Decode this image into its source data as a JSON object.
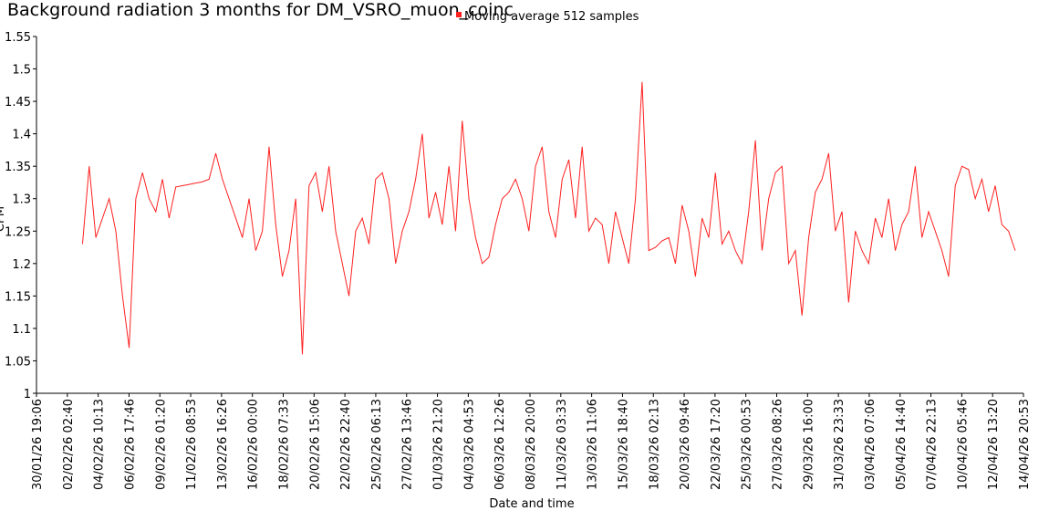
{
  "chart_data": {
    "type": "line",
    "title": "Background radiation 3 months for DM_VSRO_muon_coinc",
    "x_label": "Date and time",
    "y_label": "CPM",
    "x": [
      "03/02/26 06:00",
      "03/02/26 18:00",
      "04/02/26 06:00",
      "04/02/26 18:00",
      "05/02/26 06:00",
      "05/02/26 18:00",
      "06/02/26 06:00",
      "06/02/26 18:00",
      "07/02/26 06:00",
      "07/02/26 18:00",
      "08/02/26 06:00",
      "08/02/26 18:00",
      "09/02/26 06:00",
      "09/02/26 18:00",
      "10/02/26 06:00",
      "10/02/26 18:00",
      "11/02/26 06:00",
      "11/02/26 18:00",
      "12/02/26 06:00",
      "12/02/26 18:00",
      "13/02/26 06:00",
      "13/02/26 18:00",
      "14/02/26 06:00",
      "14/02/26 18:00",
      "15/02/26 06:00",
      "15/02/26 18:00",
      "16/02/26 06:00",
      "16/02/26 18:00",
      "17/02/26 06:00",
      "17/02/26 18:00",
      "18/02/26 06:00",
      "18/02/26 18:00",
      "19/02/26 06:00",
      "19/02/26 18:00",
      "20/02/26 06:00",
      "20/02/26 18:00",
      "21/02/26 06:00",
      "21/02/26 18:00",
      "22/02/26 06:00",
      "22/02/26 18:00",
      "23/02/26 06:00",
      "23/02/26 18:00",
      "24/02/26 06:00",
      "24/02/26 18:00",
      "25/02/26 06:00",
      "25/02/26 18:00",
      "26/02/26 06:00",
      "26/02/26 18:00",
      "27/02/26 06:00",
      "27/02/26 18:00",
      "28/02/26 06:00",
      "28/02/26 18:00",
      "01/03/26 06:00",
      "01/03/26 18:00",
      "02/03/26 06:00",
      "02/03/26 18:00",
      "03/03/26 06:00",
      "03/03/26 18:00",
      "04/03/26 06:00",
      "04/03/26 18:00",
      "05/03/26 06:00",
      "05/03/26 18:00",
      "06/03/26 06:00",
      "06/03/26 18:00",
      "07/03/26 06:00",
      "07/03/26 18:00",
      "08/03/26 06:00",
      "08/03/26 18:00",
      "09/03/26 06:00",
      "09/03/26 18:00",
      "10/03/26 06:00",
      "10/03/26 18:00",
      "11/03/26 06:00",
      "11/03/26 18:00",
      "12/03/26 06:00",
      "12/03/26 18:00",
      "13/03/26 06:00",
      "13/03/26 18:00",
      "14/03/26 06:00",
      "14/03/26 18:00",
      "15/03/26 06:00",
      "15/03/26 18:00",
      "16/03/26 06:00",
      "16/03/26 18:00",
      "17/03/26 06:00",
      "17/03/26 18:00",
      "18/03/26 06:00",
      "18/03/26 18:00",
      "19/03/26 06:00",
      "19/03/26 18:00",
      "20/03/26 06:00",
      "20/03/26 18:00",
      "21/03/26 06:00",
      "21/03/26 18:00",
      "22/03/26 06:00",
      "22/03/26 18:00",
      "23/03/26 06:00",
      "23/03/26 18:00",
      "24/03/26 06:00",
      "24/03/26 18:00",
      "25/03/26 06:00",
      "25/03/26 18:00",
      "26/03/26 06:00",
      "26/03/26 18:00",
      "27/03/26 06:00",
      "27/03/26 18:00",
      "28/03/26 06:00",
      "28/03/26 18:00",
      "29/03/26 06:00",
      "29/03/26 18:00",
      "30/03/26 06:00",
      "30/03/26 18:00",
      "31/03/26 06:00",
      "31/03/26 18:00",
      "01/04/26 06:00",
      "01/04/26 18:00",
      "02/04/26 06:00",
      "02/04/26 18:00",
      "03/04/26 06:00",
      "03/04/26 18:00",
      "04/04/26 06:00",
      "04/04/26 18:00",
      "05/04/26 06:00",
      "05/04/26 18:00",
      "06/04/26 06:00",
      "06/04/26 18:00",
      "07/04/26 06:00",
      "07/04/26 18:00",
      "08/04/26 06:00",
      "08/04/26 18:00",
      "09/04/26 06:00",
      "09/04/26 18:00",
      "10/04/26 06:00",
      "10/04/26 18:00",
      "11/04/26 06:00",
      "11/04/26 18:00",
      "12/04/26 06:00",
      "12/04/26 18:00",
      "13/04/26 06:00",
      "13/04/26 18:00",
      "14/04/26 06:00"
    ],
    "series": [
      {
        "name": "Moving average 512 samples",
        "color": "#ff2020",
        "values": [
          1.23,
          1.35,
          1.24,
          1.27,
          1.3,
          1.25,
          1.15,
          1.07,
          1.3,
          1.34,
          1.3,
          1.28,
          1.33,
          1.27,
          1.318,
          1.32,
          1.322,
          1.324,
          1.326,
          1.33,
          1.37,
          1.33,
          1.3,
          1.27,
          1.24,
          1.3,
          1.22,
          1.25,
          1.38,
          1.26,
          1.18,
          1.22,
          1.3,
          1.06,
          1.32,
          1.34,
          1.28,
          1.35,
          1.25,
          1.2,
          1.15,
          1.25,
          1.27,
          1.23,
          1.33,
          1.34,
          1.3,
          1.2,
          1.25,
          1.28,
          1.33,
          1.4,
          1.27,
          1.31,
          1.26,
          1.35,
          1.25,
          1.42,
          1.3,
          1.24,
          1.2,
          1.21,
          1.26,
          1.3,
          1.31,
          1.33,
          1.3,
          1.25,
          1.35,
          1.38,
          1.28,
          1.24,
          1.33,
          1.36,
          1.27,
          1.38,
          1.25,
          1.27,
          1.26,
          1.2,
          1.28,
          1.24,
          1.2,
          1.3,
          1.48,
          1.22,
          1.225,
          1.235,
          1.24,
          1.2,
          1.29,
          1.25,
          1.18,
          1.27,
          1.24,
          1.34,
          1.23,
          1.25,
          1.22,
          1.2,
          1.28,
          1.39,
          1.22,
          1.3,
          1.34,
          1.35,
          1.2,
          1.22,
          1.12,
          1.24,
          1.31,
          1.33,
          1.37,
          1.25,
          1.28,
          1.14,
          1.25,
          1.22,
          1.2,
          1.27,
          1.24,
          1.3,
          1.22,
          1.26,
          1.28,
          1.35,
          1.24,
          1.28,
          1.25,
          1.22,
          1.18,
          1.32,
          1.35,
          1.345,
          1.3,
          1.33,
          1.28,
          1.32,
          1.26,
          1.25,
          1.22
        ]
      }
    ],
    "xlim": [
      "30/01/26 19:06",
      "14/04/26 20:53"
    ],
    "xticks": [
      "30/01/26 19:06",
      "02/02/26 02:40",
      "04/02/26 10:13",
      "06/02/26 17:46",
      "09/02/26 01:20",
      "11/02/26 08:53",
      "13/02/26 16:26",
      "16/02/26 00:00",
      "18/02/26 07:33",
      "20/02/26 15:06",
      "22/02/26 22:40",
      "25/02/26 06:13",
      "27/02/26 13:46",
      "01/03/26 21:20",
      "04/03/26 04:53",
      "06/03/26 12:26",
      "08/03/26 20:00",
      "11/03/26 03:33",
      "13/03/26 11:06",
      "15/03/26 18:40",
      "18/03/26 02:13",
      "20/03/26 09:46",
      "22/03/26 17:20",
      "25/03/26 00:53",
      "27/03/26 08:26",
      "29/03/26 16:00",
      "31/03/26 23:33",
      "03/04/26 07:06",
      "05/04/26 14:40",
      "07/04/26 22:13",
      "10/04/26 05:46",
      "12/04/26 13:20",
      "14/04/26 20:53"
    ],
    "ylim": [
      1,
      1.55
    ],
    "yticks": [
      1,
      1.05,
      1.1,
      1.15,
      1.2,
      1.25,
      1.3,
      1.35,
      1.4,
      1.45,
      1.5,
      1.55
    ]
  }
}
